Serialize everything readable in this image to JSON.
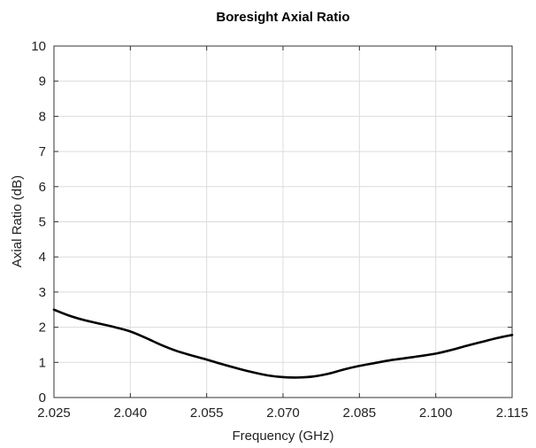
{
  "chart_data": {
    "type": "line",
    "title": "Boresight Axial Ratio",
    "xlabel": "Frequency (GHz)",
    "ylabel": "Axial Ratio (dB)",
    "xlim": [
      2.025,
      2.115
    ],
    "ylim": [
      0,
      10
    ],
    "xticks": [
      "2.025",
      "2.040",
      "2.055",
      "2.070",
      "2.085",
      "2.100",
      "2.115"
    ],
    "yticks": [
      "0",
      "1",
      "2",
      "3",
      "4",
      "5",
      "6",
      "7",
      "8",
      "9",
      "10"
    ],
    "grid": true,
    "series": [
      {
        "color": "#000000",
        "x": [
          2.025,
          2.028,
          2.031,
          2.034,
          2.037,
          2.04,
          2.043,
          2.046,
          2.049,
          2.052,
          2.055,
          2.058,
          2.061,
          2.064,
          2.067,
          2.07,
          2.073,
          2.076,
          2.079,
          2.082,
          2.085,
          2.088,
          2.091,
          2.094,
          2.097,
          2.1,
          2.103,
          2.106,
          2.109,
          2.112,
          2.115
        ],
        "y": [
          2.5,
          2.33,
          2.2,
          2.1,
          2.0,
          1.88,
          1.7,
          1.5,
          1.33,
          1.2,
          1.08,
          0.95,
          0.83,
          0.72,
          0.63,
          0.58,
          0.57,
          0.6,
          0.68,
          0.8,
          0.9,
          0.98,
          1.06,
          1.12,
          1.18,
          1.25,
          1.35,
          1.47,
          1.58,
          1.69,
          1.78
        ]
      }
    ]
  }
}
